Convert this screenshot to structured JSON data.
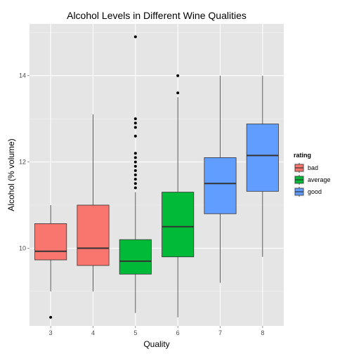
{
  "chart_data": {
    "type": "boxplot",
    "title": "Alcohol Levels in Different Wine Qualities",
    "xlabel": "Quality",
    "ylabel": "Alcohol (% volume)",
    "ylim": [
      8.2,
      15.2
    ],
    "y_ticks": [
      10,
      12,
      14
    ],
    "grid": true,
    "legend": {
      "title": "rating",
      "position": "right",
      "entries": [
        {
          "label": "bad",
          "color": "#F8766D"
        },
        {
          "label": "average",
          "color": "#00BA38"
        },
        {
          "label": "good",
          "color": "#619CFF"
        }
      ]
    },
    "categories": [
      "3",
      "4",
      "5",
      "6",
      "7",
      "8"
    ],
    "boxes": [
      {
        "quality": "3",
        "rating": "bad",
        "whisker_low": 9.0,
        "q1": 9.73,
        "median": 9.93,
        "q3": 10.57,
        "whisker_high": 11.0,
        "outliers": [
          8.4
        ]
      },
      {
        "quality": "4",
        "rating": "bad",
        "whisker_low": 9.0,
        "q1": 9.6,
        "median": 10.0,
        "q3": 11.0,
        "whisker_high": 13.1,
        "outliers": []
      },
      {
        "quality": "5",
        "rating": "average",
        "whisker_low": 8.5,
        "q1": 9.4,
        "median": 9.7,
        "q3": 10.2,
        "whisker_high": 11.3,
        "outliers": [
          11.4,
          11.5,
          11.6,
          11.7,
          11.8,
          11.9,
          12.0,
          12.1,
          12.2,
          12.6,
          12.8,
          12.9,
          13.0,
          14.9
        ]
      },
      {
        "quality": "6",
        "rating": "average",
        "whisker_low": 8.4,
        "q1": 9.8,
        "median": 10.5,
        "q3": 11.3,
        "whisker_high": 13.5,
        "outliers": [
          13.6,
          14.0
        ]
      },
      {
        "quality": "7",
        "rating": "good",
        "whisker_low": 9.2,
        "q1": 10.8,
        "median": 11.5,
        "q3": 12.1,
        "whisker_high": 14.0,
        "outliers": []
      },
      {
        "quality": "8",
        "rating": "good",
        "whisker_low": 9.8,
        "q1": 11.32,
        "median": 12.15,
        "q3": 12.88,
        "whisker_high": 14.0,
        "outliers": []
      }
    ]
  }
}
